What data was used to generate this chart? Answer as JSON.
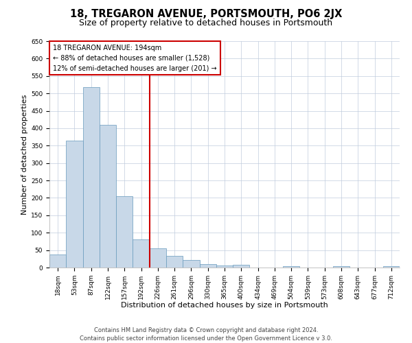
{
  "title": "18, TREGARON AVENUE, PORTSMOUTH, PO6 2JX",
  "subtitle": "Size of property relative to detached houses in Portsmouth",
  "xlabel": "Distribution of detached houses by size in Portsmouth",
  "ylabel": "Number of detached properties",
  "bar_labels": [
    "18sqm",
    "53sqm",
    "87sqm",
    "122sqm",
    "157sqm",
    "192sqm",
    "226sqm",
    "261sqm",
    "296sqm",
    "330sqm",
    "365sqm",
    "400sqm",
    "434sqm",
    "469sqm",
    "504sqm",
    "539sqm",
    "573sqm",
    "608sqm",
    "643sqm",
    "677sqm",
    "712sqm"
  ],
  "bar_values": [
    37,
    365,
    519,
    410,
    204,
    81,
    55,
    33,
    21,
    10,
    6,
    8,
    0,
    0,
    3,
    0,
    0,
    4,
    0,
    0,
    4
  ],
  "bar_color": "#c8d8e8",
  "bar_edge_color": "#6699bb",
  "vline_color": "#cc0000",
  "annotation_title": "18 TREGARON AVENUE: 194sqm",
  "annotation_line1": "← 88% of detached houses are smaller (1,528)",
  "annotation_line2": "12% of semi-detached houses are larger (201) →",
  "annotation_box_color": "#ffffff",
  "annotation_box_edge_color": "#cc0000",
  "ylim": [
    0,
    650
  ],
  "yticks": [
    0,
    50,
    100,
    150,
    200,
    250,
    300,
    350,
    400,
    450,
    500,
    550,
    600,
    650
  ],
  "footer_line1": "Contains HM Land Registry data © Crown copyright and database right 2024.",
  "footer_line2": "Contains public sector information licensed under the Open Government Licence v 3.0.",
  "bg_color": "#ffffff",
  "grid_color": "#c0ccdd",
  "title_fontsize": 10.5,
  "subtitle_fontsize": 9,
  "tick_fontsize": 6.5,
  "axis_label_fontsize": 8,
  "footer_fontsize": 6,
  "ann_fontsize": 7
}
